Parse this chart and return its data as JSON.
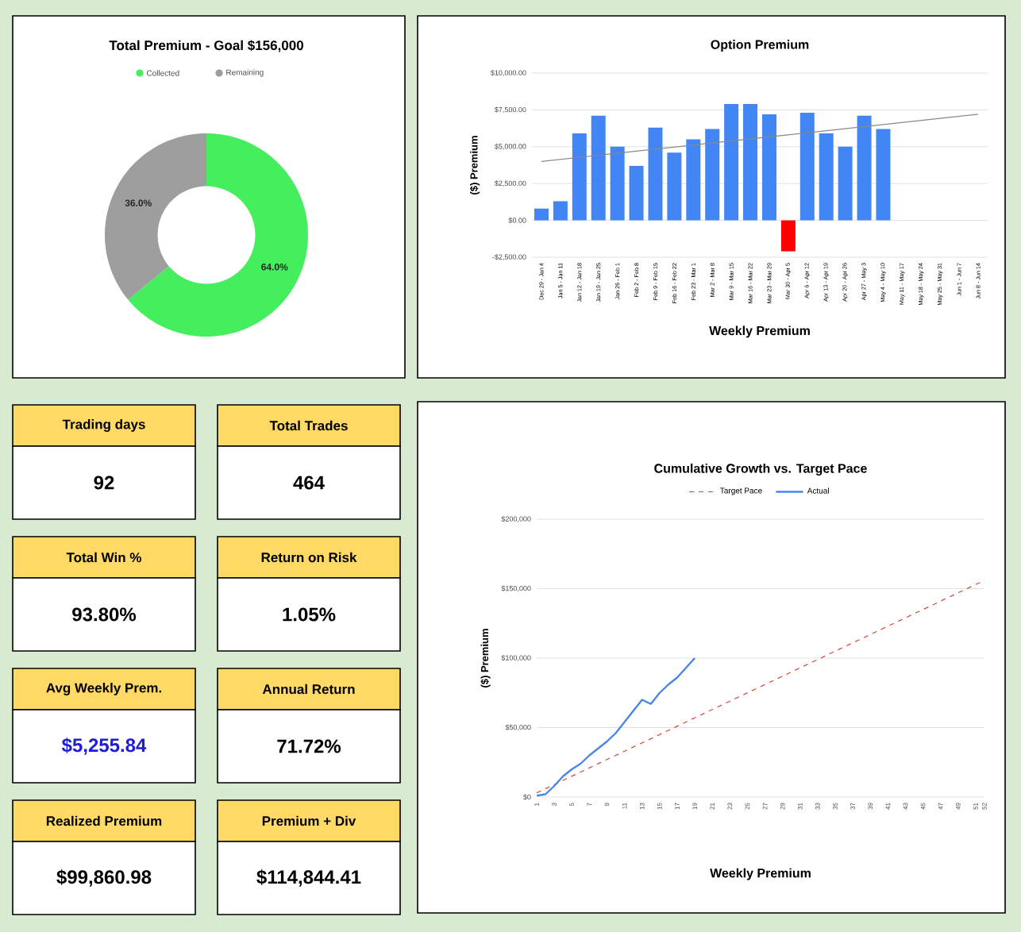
{
  "chart_data": [
    {
      "type": "donut",
      "title": "Total Premium - Goal $156,000",
      "categories": [
        "Collected",
        "Remaining"
      ],
      "values": [
        64,
        36
      ],
      "colors": [
        "#44ee5c",
        "#9e9e9e"
      ],
      "value_labels": [
        "64.0%",
        "36.0%"
      ],
      "legend": "top"
    },
    {
      "type": "bar",
      "title": "Option Premium",
      "xlabel": "Weekly Premium",
      "ylabel": "($) Premium",
      "categories": [
        "Dec 29 - Jan 4",
        "Jan 5 - Jan 11",
        "Jan 12 - Jan 18",
        "Jan 19 - Jan 25",
        "Jan 26 - Feb 1",
        "Feb 2 - Feb 8",
        "Feb 9 - Feb 15",
        "Feb 16 - Feb 22",
        "Feb 23 - Mar 1",
        "Mar 2 - Mar 8",
        "Mar 9 - Mar 15",
        "Mar 16 - Mar 22",
        "Mar 23 - Mar 29",
        "Mar 30 - Apr 5",
        "Apr 6 - Apr 12",
        "Apr 13 - Apr 19",
        "Apr 20 - Apr 26",
        "Apr 27 - May 3",
        "May 4 - May 10",
        "May 11 - May 17",
        "May 18 - May 24",
        "May 25 - May 31",
        "Jun 1 - Jun 7",
        "Jun 8 - Jun 14"
      ],
      "series": [
        {
          "values": [
            800,
            1300,
            5900,
            7100,
            5000,
            3700,
            6300,
            4600,
            5500,
            6200,
            7900,
            7900,
            7200,
            -2100,
            7300,
            5900,
            5000,
            7100,
            6200,
            null,
            null,
            null,
            null,
            null
          ],
          "colors": [
            "#4285f4",
            "#4285f4",
            "#4285f4",
            "#4285f4",
            "#4285f4",
            "#4285f4",
            "#4285f4",
            "#4285f4",
            "#4285f4",
            "#4285f4",
            "#4285f4",
            "#4285f4",
            "#4285f4",
            "#ff0000",
            "#4285f4",
            "#4285f4",
            "#4285f4",
            "#4285f4",
            "#4285f4",
            "#4285f4",
            "#4285f4",
            "#4285f4",
            "#4285f4",
            "#4285f4"
          ]
        },
        {
          "type": "line",
          "x": [
            "Dec 29 - Jan 4",
            "Jun 8 - Jun 14"
          ],
          "values": [
            4000,
            7200
          ],
          "color": "#888888"
        }
      ],
      "ylim": [
        -2500,
        10000
      ],
      "yticks": [
        {
          "value": -2500,
          "label": "-$2,500.00"
        },
        {
          "value": 0,
          "label": "$0.00"
        },
        {
          "value": 2500,
          "label": "$2,500.00"
        },
        {
          "value": 5000,
          "label": "$5,000.00"
        },
        {
          "value": 7500,
          "label": "$7,500.00"
        },
        {
          "value": 10000,
          "label": "$10,000.00"
        }
      ],
      "grid": "y"
    },
    {
      "type": "other",
      "title": "Trading days",
      "subtitle": "92",
      "color": "#000000"
    },
    {
      "type": "other",
      "title": "Total Trades",
      "subtitle": "464",
      "color": "#000000"
    },
    {
      "type": "other",
      "title": "Total Win %",
      "subtitle": "93.80%",
      "color": "#000000"
    },
    {
      "type": "other",
      "title": "Return on Risk",
      "subtitle": "1.05%",
      "color": "#000000"
    },
    {
      "type": "other",
      "title": "Avg Weekly Prem.",
      "subtitle": "$5,255.84",
      "color": "#1c1cd9"
    },
    {
      "type": "other",
      "title": "Annual Return",
      "subtitle": "71.72%",
      "color": "#000000"
    },
    {
      "type": "other",
      "title": "Realized Premium",
      "subtitle": "$99,860.98",
      "color": "#000000"
    },
    {
      "type": "other",
      "title": "Premium + Div",
      "subtitle": "$114,844.41",
      "color": "#000000"
    },
    {
      "type": "line",
      "title": "Cumulative Growth vs. Target Pace",
      "xlabel": "Weekly Premium",
      "ylabel": "($) Premium",
      "series": [
        {
          "name": "Target Pace",
          "color": "#db4437",
          "line_style": "dashed",
          "x": [
            1,
            52
          ],
          "values": [
            3000,
            156000
          ]
        },
        {
          "name": "Actual",
          "color": "#4a86e8",
          "line_style": "solid",
          "x": [
            1,
            2,
            3,
            4,
            5,
            6,
            7,
            8,
            9,
            10,
            11,
            12,
            13,
            14,
            15,
            16,
            17,
            18,
            19
          ],
          "values": [
            1000,
            2000,
            8000,
            15000,
            20000,
            24000,
            30000,
            35000,
            40000,
            46000,
            54000,
            62000,
            70000,
            67000,
            75000,
            81000,
            86000,
            93000,
            100000
          ]
        }
      ],
      "xlim": [
        1,
        52
      ],
      "xticks": [
        1,
        3,
        5,
        7,
        9,
        11,
        13,
        15,
        17,
        19,
        21,
        23,
        25,
        27,
        29,
        31,
        33,
        35,
        37,
        39,
        41,
        43,
        45,
        47,
        49,
        51,
        52
      ],
      "ylim": [
        0,
        200000
      ],
      "yticks": [
        {
          "value": 0,
          "label": "$0"
        },
        {
          "value": 50000,
          "label": "$50,000"
        },
        {
          "value": 100000,
          "label": "$100,000"
        },
        {
          "value": 150000,
          "label": "$150,000"
        },
        {
          "value": 200000,
          "label": "$200,000"
        }
      ],
      "grid": "y",
      "legend": "top"
    }
  ]
}
